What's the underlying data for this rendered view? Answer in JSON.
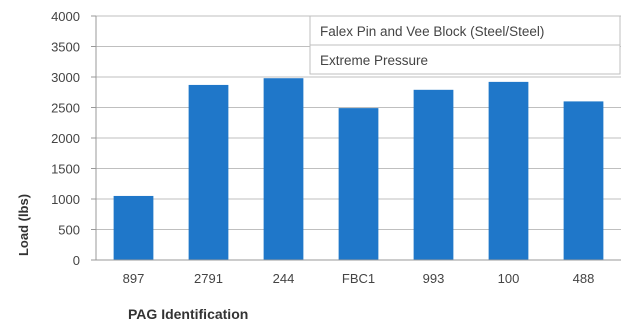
{
  "chart_data": {
    "type": "bar",
    "title_lines": [
      "Falex Pin and Vee Block (Steel/Steel)",
      "Extreme Pressure"
    ],
    "categories": [
      "897",
      "2791",
      "244",
      "FBC1",
      "993",
      "100",
      "488"
    ],
    "values": [
      1050,
      2870,
      2980,
      2490,
      2790,
      2920,
      2600
    ],
    "xlabel": "PAG Identification",
    "ylabel": "Load (lbs)",
    "ylim": [
      0,
      4000
    ],
    "yticks": [
      0,
      500,
      1000,
      1500,
      2000,
      2500,
      3000,
      3500,
      4000
    ],
    "grid": true,
    "legend": "none",
    "bar_color": "#1f77c9",
    "grid_color": "#bfbfbf"
  }
}
